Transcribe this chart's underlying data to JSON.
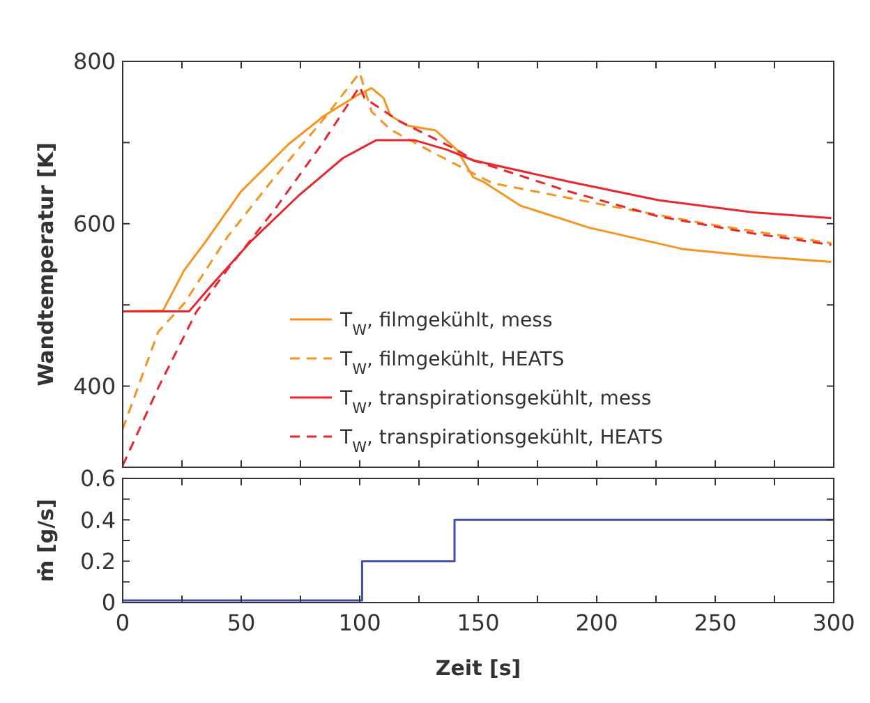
{
  "chart_data": [
    {
      "type": "line",
      "ylabel": "Wandtemperatur [K]",
      "xlim": [
        0,
        300
      ],
      "ylim": [
        300,
        800
      ],
      "xticks": [
        {
          "value": 0,
          "label": null
        },
        {
          "value": 25,
          "label": null
        },
        {
          "value": 50,
          "label": null
        },
        {
          "value": 75,
          "label": null
        },
        {
          "value": 100,
          "label": null
        },
        {
          "value": 125,
          "label": null
        },
        {
          "value": 150,
          "label": null
        },
        {
          "value": 175,
          "label": null
        },
        {
          "value": 200,
          "label": null
        },
        {
          "value": 225,
          "label": null
        },
        {
          "value": 250,
          "label": null
        },
        {
          "value": 275,
          "label": null
        },
        {
          "value": 300,
          "label": null
        }
      ],
      "yticks": [
        {
          "value": 300,
          "label": null
        },
        400,
        {
          "value": 500,
          "label": null
        },
        600,
        {
          "value": 700,
          "label": null
        },
        800
      ],
      "tick_labels": "y",
      "grid": false,
      "legend": "bottom right",
      "series": [
        {
          "name": "T$_{W}$, filmgekühlt, mess",
          "color": "#f7931e",
          "line_style": "solid",
          "x": [
            0,
            17,
            26,
            35,
            50,
            70,
            85,
            100,
            105,
            110,
            113,
            120,
            132,
            141,
            148,
            152,
            168,
            197,
            236,
            266,
            299
          ],
          "values": [
            492,
            493,
            543,
            578,
            640,
            698,
            733,
            760,
            767,
            755,
            733,
            721,
            715,
            691,
            657,
            652,
            622,
            595,
            569,
            560,
            553
          ]
        },
        {
          "name": "T$_{W}$, filmgekühlt, HEATS",
          "color": "#f7931e",
          "line_style": "dashed",
          "x": [
            0,
            15,
            26,
            44,
            64,
            84,
            100,
            105,
            113,
            132,
            156,
            207,
            246,
            299
          ],
          "values": [
            347,
            467,
            502,
            583,
            657,
            726,
            786,
            738,
            716,
            686,
            650,
            621,
            600,
            576
          ]
        },
        {
          "name": "T$_{W}$, transpirationsgekühlt, mess",
          "color": "#e8262b",
          "line_style": "solid",
          "x": [
            0,
            28,
            38,
            54,
            74,
            93,
            107,
            123,
            137,
            148,
            188,
            226,
            266,
            299
          ],
          "values": [
            492,
            492,
            526,
            578,
            634,
            681,
            703,
            703,
            691,
            678,
            652,
            629,
            614,
            607
          ]
        },
        {
          "name": "T$_{W}$, transpirationsgekühlt, HEATS",
          "color": "#e8262b",
          "line_style": "dashed",
          "x": [
            0,
            15,
            31,
            44,
            64,
            84,
            100,
            102,
            117,
            141,
            148,
            188,
            226,
            266,
            299
          ],
          "values": [
            302,
            398,
            491,
            543,
            617,
            698,
            769,
            755,
            726,
            691,
            678,
            640,
            609,
            588,
            574
          ]
        }
      ]
    },
    {
      "type": "step",
      "xlabel": "Zeit [s]",
      "ylabel": "ṁ [g/s]",
      "xlim": [
        0,
        300
      ],
      "ylim": [
        0,
        0.6
      ],
      "xticks": [
        0,
        {
          "value": 25,
          "label": null
        },
        50,
        {
          "value": 75,
          "label": null
        },
        100,
        {
          "value": 125,
          "label": null
        },
        150,
        {
          "value": 175,
          "label": null
        },
        200,
        {
          "value": 225,
          "label": null
        },
        250,
        {
          "value": 275,
          "label": null
        },
        300
      ],
      "yticks": [
        0,
        {
          "value": 0.1,
          "label": null
        },
        0.2,
        {
          "value": 0.3,
          "label": null
        },
        0.4,
        {
          "value": 0.5,
          "label": null
        },
        0.6
      ],
      "grid": false,
      "series": [
        {
          "color": "#3b4fa8",
          "x": [
            0,
            101,
            140,
            300
          ],
          "values": [
            0.01,
            0.2,
            0.4,
            0.4
          ]
        }
      ]
    }
  ]
}
